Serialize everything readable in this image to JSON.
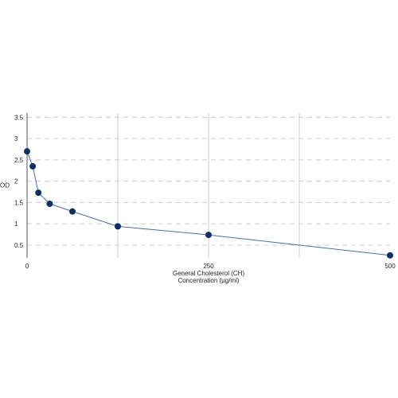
{
  "chart_data": {
    "type": "line",
    "title": "",
    "xlabel_lines": [
      "General Cholesterol (CH)",
      "Concentration (µg/ml)"
    ],
    "ylabel": "OD",
    "xlim": [
      0,
      500
    ],
    "ylim": [
      0.2,
      3.6
    ],
    "x_ticks": [
      0,
      250,
      500
    ],
    "x_tick_labels": [
      "0",
      "250",
      "500"
    ],
    "y_ticks": [
      0.5,
      1,
      1.5,
      2,
      2.5,
      3,
      3.5
    ],
    "y_tick_labels": [
      "0.5",
      "1",
      "1.5",
      "2",
      "2.5",
      "3",
      "3.5"
    ],
    "x_grid_values": [
      125,
      250,
      375
    ],
    "grid": true,
    "legend": false,
    "series": [
      {
        "x": [
          0,
          7.8,
          15.6,
          31.2,
          62.5,
          125,
          250,
          500
        ],
        "y": [
          2.7,
          2.35,
          1.73,
          1.47,
          1.29,
          0.94,
          0.74,
          0.26
        ]
      }
    ],
    "colors": {
      "line": "#4a6fa5",
      "marker": "#0d2f63",
      "grid": "#cccccc",
      "axis": "#555555"
    }
  }
}
